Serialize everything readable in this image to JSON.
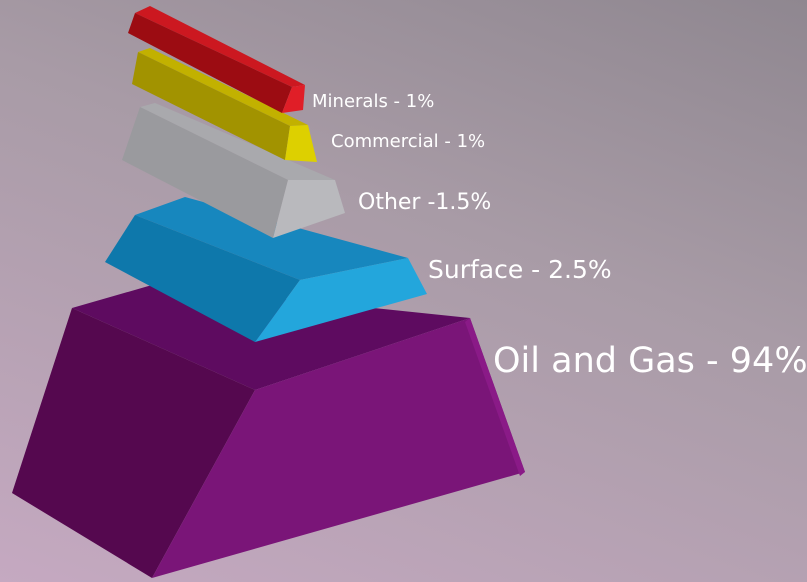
{
  "chart_data": {
    "type": "pyramid",
    "categories": [
      "Minerals",
      "Commercial",
      "Other",
      "Surface",
      "Oil and Gas"
    ],
    "values": [
      1,
      1,
      1.5,
      2.5,
      94
    ],
    "unit": "%",
    "labels": [
      "Minerals - 1%",
      "Commercial - 1%",
      "Other -1.5%",
      "Surface - 2.5%",
      "Oil and Gas - 94%"
    ],
    "colors": [
      "#c0111a",
      "#d8c800",
      "#b4b4b8",
      "#1e9fd6",
      "#6e1170"
    ]
  }
}
